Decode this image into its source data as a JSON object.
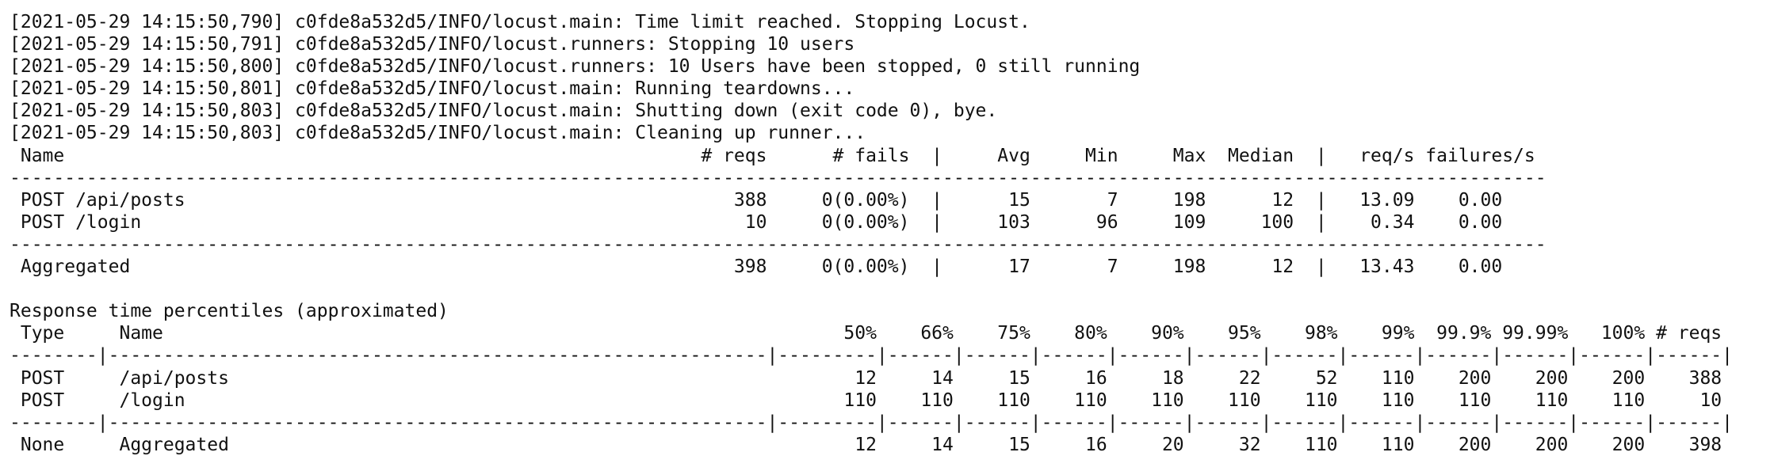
{
  "terminal": {
    "lines": [
      "[2021-05-29 14:15:50,790] c0fde8a532d5/INFO/locust.main: Time limit reached. Stopping Locust.",
      "[2021-05-29 14:15:50,791] c0fde8a532d5/INFO/locust.runners: Stopping 10 users",
      "[2021-05-29 14:15:50,800] c0fde8a532d5/INFO/locust.runners: 10 Users have been stopped, 0 still running",
      "[2021-05-29 14:15:50,801] c0fde8a532d5/INFO/locust.main: Running teardowns...",
      "[2021-05-29 14:15:50,803] c0fde8a532d5/INFO/locust.main: Shutting down (exit code 0), bye.",
      "[2021-05-29 14:15:50,803] c0fde8a532d5/INFO/locust.main: Cleaning up runner...",
      " Name                                                          # reqs      # fails  |     Avg     Min     Max  Median  |   req/s failures/s",
      "--------------------------------------------------------------------------------------------------------------------------------------------",
      " POST /api/posts                                                  388     0(0.00%)  |      15       7     198      12  |   13.09    0.00",
      " POST /login                                                       10     0(0.00%)  |     103      96     109     100  |    0.34    0.00",
      "--------------------------------------------------------------------------------------------------------------------------------------------",
      " Aggregated                                                       398     0(0.00%)  |      17       7     198      12  |   13.43    0.00",
      "",
      "Response time percentiles (approximated)",
      " Type     Name                                                              50%    66%    75%    80%    90%    95%    98%    99%  99.9% 99.99%   100% # reqs",
      "--------|------------------------------------------------------------|---------|------|------|------|------|------|------|------|------|------|------|------|",
      " POST     /api/posts                                                         12     14     15     16     18     22     52    110    200    200    200    388",
      " POST     /login                                                            110    110    110    110    110    110    110    110    110    110    110     10",
      "--------|------------------------------------------------------------|---------|------|------|------|------|------|------|------|------|------|------|------|",
      " None     Aggregated                                                         12     14     15     16     20     32    110    110    200    200    200    398"
    ]
  }
}
